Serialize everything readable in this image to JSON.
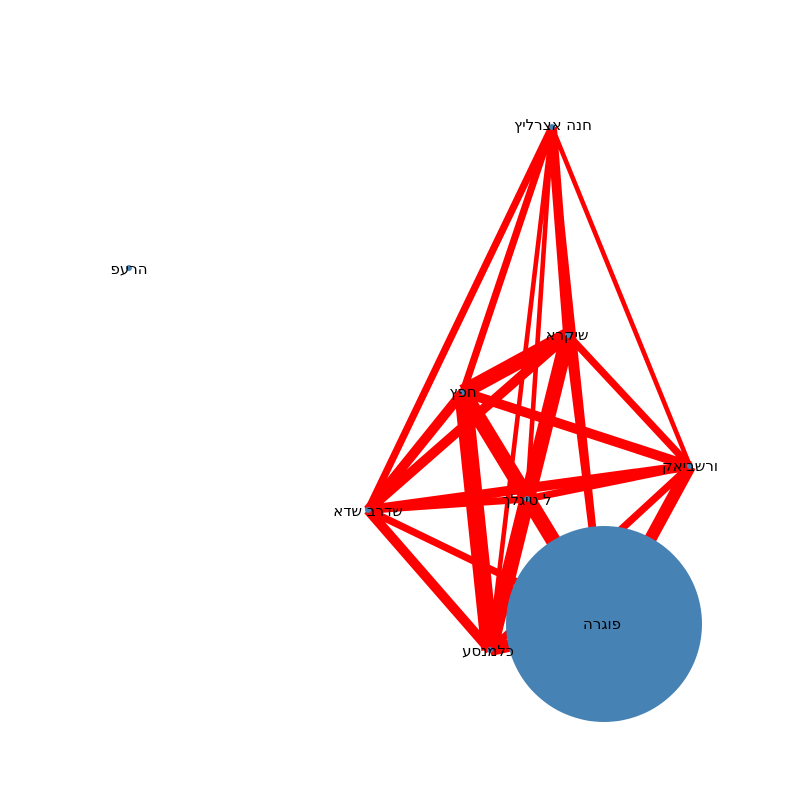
{
  "graph": {
    "edge_color": "#ff0000",
    "node_color": "#4682b4",
    "nodes": [
      {
        "id": "hana",
        "label": "חנה אצרליץ"
      },
      {
        "id": "pera",
        "label": "הרעפ"
      },
      {
        "id": "shikra",
        "label": "שיקרא"
      },
      {
        "id": "hafets",
        "label": "חפץ"
      },
      {
        "id": "varshavi",
        "label": "ורשביאק"
      },
      {
        "id": "tigal",
        "label": "ל טיגלך"
      },
      {
        "id": "shadra",
        "label": "שדרב שדא"
      },
      {
        "id": "kalmens",
        "label": "כלמנסע"
      },
      {
        "id": "fogra",
        "label": "פוגרה",
        "size": "large"
      }
    ],
    "edges": [
      {
        "source": "hana",
        "target": "shikra",
        "weight": 3
      },
      {
        "source": "hana",
        "target": "hafets",
        "weight": 2
      },
      {
        "source": "hana",
        "target": "shadra",
        "weight": 2
      },
      {
        "source": "hana",
        "target": "varshavi",
        "weight": 1
      },
      {
        "source": "hana",
        "target": "tigal",
        "weight": 1
      },
      {
        "source": "hana",
        "target": "kalmens",
        "weight": 1
      },
      {
        "source": "hana",
        "target": "fogra",
        "weight": 1
      },
      {
        "source": "shikra",
        "target": "hafets",
        "weight": 5
      },
      {
        "source": "shikra",
        "target": "shadra",
        "weight": 3
      },
      {
        "source": "shikra",
        "target": "varshavi",
        "weight": 2
      },
      {
        "source": "shikra",
        "target": "kalmens",
        "weight": 5
      },
      {
        "source": "shikra",
        "target": "tigal",
        "weight": 3
      },
      {
        "source": "shikra",
        "target": "fogra",
        "weight": 2
      },
      {
        "source": "hafets",
        "target": "varshavi",
        "weight": 3
      },
      {
        "source": "hafets",
        "target": "shadra",
        "weight": 3
      },
      {
        "source": "hafets",
        "target": "kalmens",
        "weight": 6
      },
      {
        "source": "hafets",
        "target": "tigal",
        "weight": 4
      },
      {
        "source": "hafets",
        "target": "fogra",
        "weight": 5
      },
      {
        "source": "varshavi",
        "target": "shadra",
        "weight": 3
      },
      {
        "source": "varshavi",
        "target": "tigal",
        "weight": 2
      },
      {
        "source": "varshavi",
        "target": "fogra",
        "weight": 4
      },
      {
        "source": "varshavi",
        "target": "kalmens",
        "weight": 2
      },
      {
        "source": "shadra",
        "target": "kalmens",
        "weight": 3
      },
      {
        "source": "shadra",
        "target": "tigal",
        "weight": 2
      },
      {
        "source": "shadra",
        "target": "fogra",
        "weight": 2
      },
      {
        "source": "tigal",
        "target": "kalmens",
        "weight": 5
      },
      {
        "source": "tigal",
        "target": "fogra",
        "weight": 3
      },
      {
        "source": "kalmens",
        "target": "fogra",
        "weight": 4
      }
    ]
  }
}
